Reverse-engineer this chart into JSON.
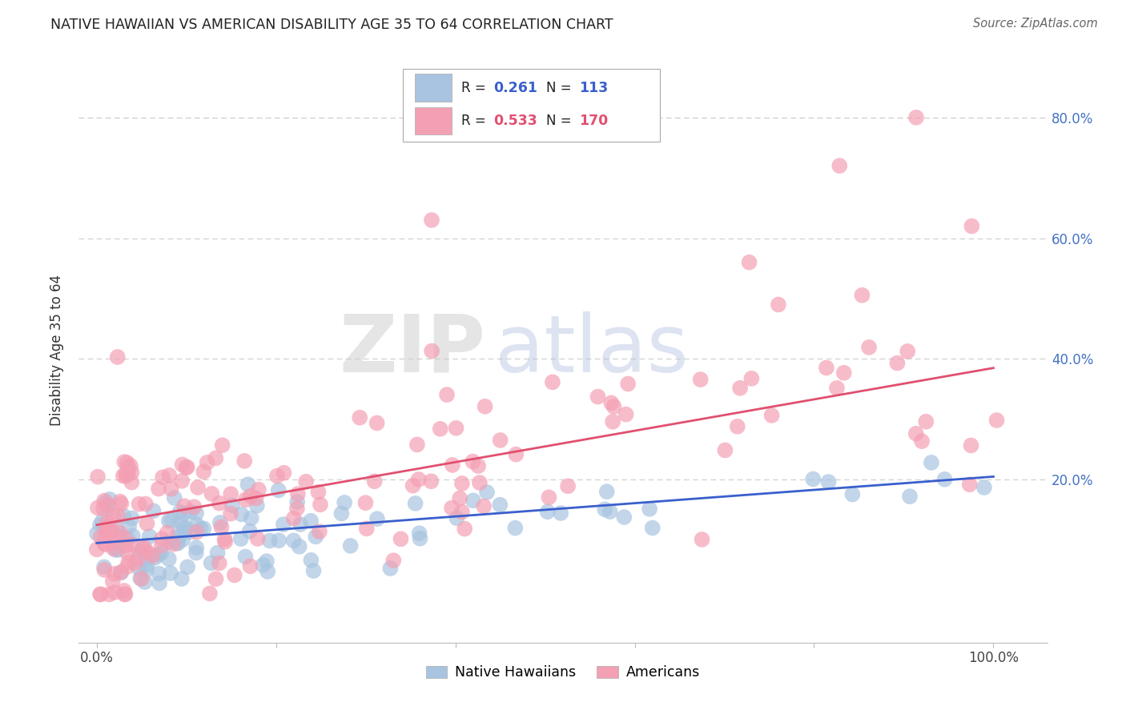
{
  "title": "NATIVE HAWAIIAN VS AMERICAN DISABILITY AGE 35 TO 64 CORRELATION CHART",
  "source": "Source: ZipAtlas.com",
  "ylabel": "Disability Age 35 to 64",
  "blue_R": 0.261,
  "blue_N": 113,
  "pink_R": 0.533,
  "pink_N": 170,
  "blue_color": "#a8c4e0",
  "pink_color": "#f4a0b4",
  "blue_line_color": "#3a5fcd",
  "pink_line_color": "#e05070",
  "legend_label_blue": "Native Hawaiians",
  "legend_label_pink": "Americans",
  "watermark_zip": "ZIP",
  "watermark_atlas": "atlas",
  "background_color": "#ffffff",
  "grid_color": "#cccccc",
  "ytick_vals": [
    0.2,
    0.4,
    0.6,
    0.8
  ],
  "ytick_labels": [
    "20.0%",
    "40.0%",
    "60.0%",
    "80.0%"
  ],
  "xlim": [
    -0.02,
    1.06
  ],
  "ylim": [
    -0.07,
    0.9
  ],
  "blue_line_x0": 0.0,
  "blue_line_y0": 0.095,
  "blue_line_x1": 1.0,
  "blue_line_y1": 0.205,
  "pink_line_x0": 0.0,
  "pink_line_y0": 0.125,
  "pink_line_x1": 1.0,
  "pink_line_y1": 0.385
}
